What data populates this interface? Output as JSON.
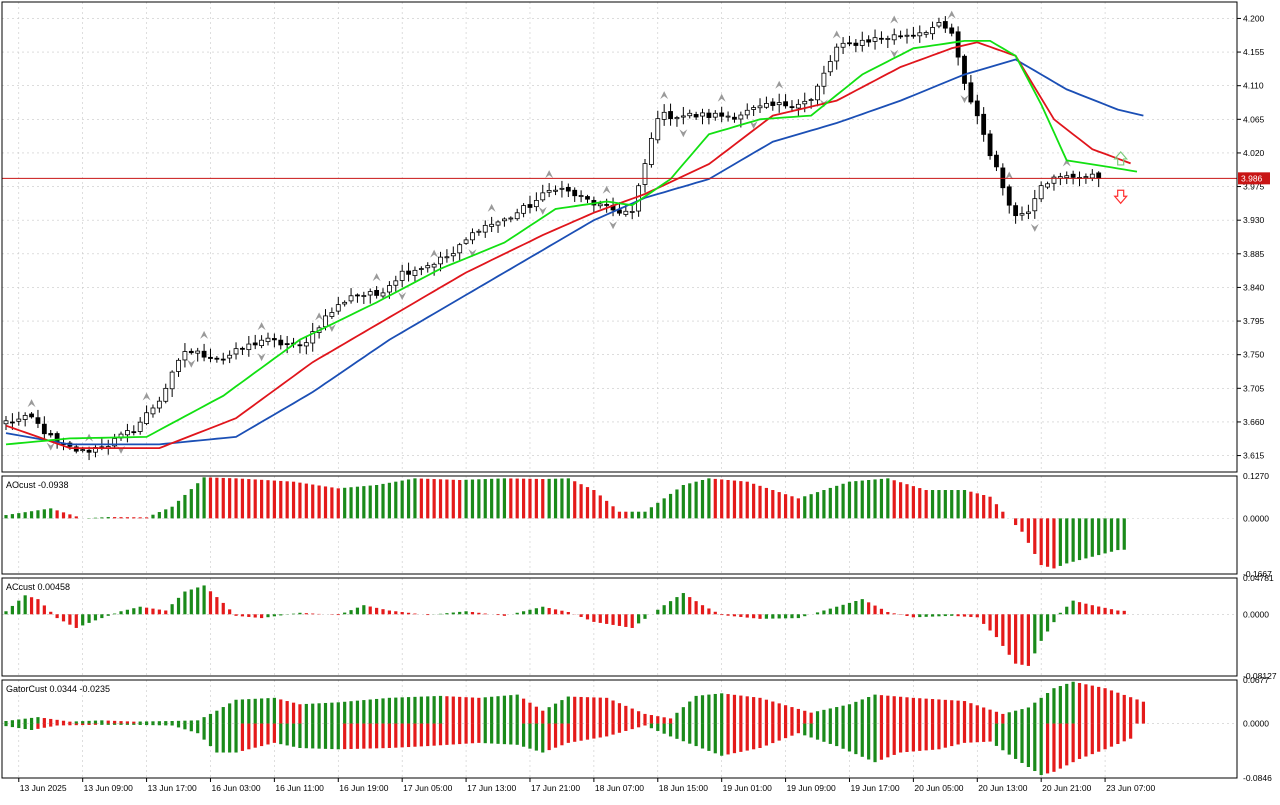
{
  "colors": {
    "background": "#ffffff",
    "grid": "#c8c8c8",
    "frame": "#000000",
    "candle_up_body": "#ffffff",
    "candle_down_body": "#000000",
    "jaw": "#1b4fb5",
    "teeth": "#e0151c",
    "lips": "#12e012",
    "bid_line": "#c81414",
    "bid_label_bg": "#c81414",
    "bid_label_text": "#ffffff",
    "histo_up": "#1a8a1a",
    "histo_down": "#e41a1a",
    "fractal": "#9a9a9a",
    "arrow_up": "#7ccc7c",
    "arrow_down": "#ff3030"
  },
  "price_panel": {
    "y_ticks": [
      "4.200",
      "4.155",
      "4.110",
      "4.065",
      "4.020",
      "3.975",
      "3.930",
      "3.885",
      "3.840",
      "3.795",
      "3.750",
      "3.705",
      "3.660",
      "3.615"
    ],
    "bid_label": "3.986",
    "bid_value": 3.986
  },
  "ao_panel": {
    "label": "AOcust -0.0938",
    "y_ticks": [
      "0.1270",
      "0.0000",
      "-0.1667"
    ]
  },
  "ac_panel": {
    "label": "ACcust 0.00458",
    "y_ticks": [
      "0.04781",
      "0.0000",
      "-0.08127"
    ]
  },
  "gator_panel": {
    "label": "GatorCust 0.0344 -0.0235",
    "y_ticks": [
      "0.0677",
      "0.0000",
      "-0.0846"
    ]
  },
  "x_ticks": [
    "13 Jun 2025",
    "13 Jun 09:00",
    "13 Jun 17:00",
    "16 Jun 03:00",
    "16 Jun 11:00",
    "16 Jun 19:00",
    "17 Jun 05:00",
    "17 Jun 13:00",
    "17 Jun 21:00",
    "18 Jun 07:00",
    "18 Jun 15:00",
    "19 Jun 01:00",
    "19 Jun 09:00",
    "19 Jun 17:00",
    "20 Jun 05:00",
    "20 Jun 13:00",
    "20 Jun 21:00",
    "23 Jun 07:00"
  ],
  "chart_data": [
    {
      "type": "candlestick",
      "symbol_panel": "price",
      "ylim": [
        3.593,
        4.222
      ],
      "y_ticks": [
        4.2,
        4.155,
        4.11,
        4.065,
        4.02,
        3.975,
        3.93,
        3.885,
        3.84,
        3.795,
        3.75,
        3.705,
        3.66,
        3.615
      ],
      "x_ticks": [
        "13 Jun 2025",
        "13 Jun 09:00",
        "13 Jun 17:00",
        "16 Jun 03:00",
        "16 Jun 11:00",
        "16 Jun 19:00",
        "17 Jun 05:00",
        "17 Jun 13:00",
        "17 Jun 21:00",
        "18 Jun 07:00",
        "18 Jun 15:00",
        "19 Jun 01:00",
        "19 Jun 09:00",
        "19 Jun 17:00",
        "20 Jun 05:00",
        "20 Jun 13:00",
        "20 Jun 21:00",
        "23 Jun 07:00"
      ],
      "close_anchors": [
        [
          0,
          3.66
        ],
        [
          4,
          3.665
        ],
        [
          8,
          3.63
        ],
        [
          12,
          3.62
        ],
        [
          16,
          3.63
        ],
        [
          20,
          3.65
        ],
        [
          24,
          3.69
        ],
        [
          28,
          3.755
        ],
        [
          34,
          3.745
        ],
        [
          40,
          3.77
        ],
        [
          46,
          3.76
        ],
        [
          50,
          3.8
        ],
        [
          54,
          3.83
        ],
        [
          58,
          3.83
        ],
        [
          62,
          3.86
        ],
        [
          66,
          3.87
        ],
        [
          70,
          3.885
        ],
        [
          74,
          3.92
        ],
        [
          78,
          3.93
        ],
        [
          82,
          3.95
        ],
        [
          86,
          3.975
        ],
        [
          90,
          3.96
        ],
        [
          94,
          3.945
        ],
        [
          98,
          3.94
        ],
        [
          102,
          4.07
        ],
        [
          106,
          4.07
        ],
        [
          110,
          4.07
        ],
        [
          114,
          4.07
        ],
        [
          118,
          4.08
        ],
        [
          122,
          4.085
        ],
        [
          126,
          4.09
        ],
        [
          130,
          4.16
        ],
        [
          134,
          4.17
        ],
        [
          138,
          4.175
        ],
        [
          142,
          4.18
        ],
        [
          146,
          4.19
        ],
        [
          148,
          4.18
        ],
        [
          150,
          4.11
        ],
        [
          152,
          4.07
        ],
        [
          154,
          4.02
        ],
        [
          156,
          3.975
        ],
        [
          158,
          3.935
        ],
        [
          160,
          3.945
        ],
        [
          162,
          3.98
        ],
        [
          164,
          3.985
        ],
        [
          168,
          3.99
        ],
        [
          171,
          3.986
        ]
      ],
      "alligator": {
        "series": [
          {
            "role": "jaw",
            "anchors": [
              [
                0,
                3.645
              ],
              [
                10,
                3.63
              ],
              [
                24,
                3.63
              ],
              [
                36,
                3.64
              ],
              [
                48,
                3.7
              ],
              [
                60,
                3.77
              ],
              [
                72,
                3.83
              ],
              [
                84,
                3.89
              ],
              [
                92,
                3.93
              ],
              [
                100,
                3.96
              ],
              [
                110,
                3.985
              ],
              [
                120,
                4.035
              ],
              [
                130,
                4.06
              ],
              [
                140,
                4.09
              ],
              [
                150,
                4.125
              ],
              [
                158,
                4.145
              ],
              [
                166,
                4.105
              ],
              [
                174,
                4.078
              ],
              [
                178,
                4.07
              ]
            ]
          },
          {
            "role": "teeth",
            "anchors": [
              [
                0,
                3.655
              ],
              [
                10,
                3.625
              ],
              [
                24,
                3.625
              ],
              [
                36,
                3.665
              ],
              [
                48,
                3.74
              ],
              [
                60,
                3.8
              ],
              [
                72,
                3.86
              ],
              [
                84,
                3.91
              ],
              [
                92,
                3.94
              ],
              [
                100,
                3.965
              ],
              [
                110,
                4.005
              ],
              [
                120,
                4.07
              ],
              [
                130,
                4.09
              ],
              [
                140,
                4.135
              ],
              [
                148,
                4.16
              ],
              [
                152,
                4.168
              ],
              [
                158,
                4.15
              ],
              [
                164,
                4.065
              ],
              [
                170,
                4.025
              ],
              [
                176,
                4.006
              ]
            ]
          },
          {
            "role": "lips",
            "anchors": [
              [
                0,
                3.63
              ],
              [
                10,
                3.638
              ],
              [
                22,
                3.64
              ],
              [
                34,
                3.695
              ],
              [
                46,
                3.77
              ],
              [
                58,
                3.82
              ],
              [
                68,
                3.865
              ],
              [
                78,
                3.9
              ],
              [
                86,
                3.945
              ],
              [
                94,
                3.955
              ],
              [
                98,
                3.95
              ],
              [
                104,
                3.985
              ],
              [
                110,
                4.045
              ],
              [
                118,
                4.065
              ],
              [
                126,
                4.07
              ],
              [
                134,
                4.125
              ],
              [
                142,
                4.16
              ],
              [
                150,
                4.17
              ],
              [
                154,
                4.17
              ],
              [
                158,
                4.15
              ],
              [
                162,
                4.085
              ],
              [
                166,
                4.01
              ],
              [
                172,
                4.002
              ],
              [
                177,
                3.995
              ]
            ]
          }
        ]
      },
      "bid": 3.986
    },
    {
      "type": "histogram",
      "name": "AOcust",
      "value_label": "-0.0938",
      "ylim": [
        -0.1667,
        0.127
      ],
      "last_value": -0.0938,
      "value_anchors": [
        [
          0,
          0.01
        ],
        [
          7,
          0.03
        ],
        [
          12,
          0.0
        ],
        [
          16,
          0.004
        ],
        [
          22,
          0.003
        ],
        [
          26,
          0.035
        ],
        [
          31,
          0.123
        ],
        [
          36,
          0.12
        ],
        [
          45,
          0.11
        ],
        [
          52,
          0.09
        ],
        [
          58,
          0.1
        ],
        [
          64,
          0.12
        ],
        [
          71,
          0.115
        ],
        [
          78,
          0.12
        ],
        [
          84,
          0.118
        ],
        [
          88,
          0.12
        ],
        [
          92,
          0.085
        ],
        [
          96,
          0.02
        ],
        [
          100,
          0.02
        ],
        [
          106,
          0.1
        ],
        [
          110,
          0.12
        ],
        [
          116,
          0.11
        ],
        [
          124,
          0.06
        ],
        [
          132,
          0.11
        ],
        [
          138,
          0.12
        ],
        [
          144,
          0.085
        ],
        [
          150,
          0.085
        ],
        [
          154,
          0.065
        ],
        [
          156,
          0.02
        ],
        [
          159,
          -0.04
        ],
        [
          162,
          -0.14
        ],
        [
          164,
          -0.15
        ],
        [
          166,
          -0.135
        ],
        [
          170,
          -0.115
        ],
        [
          174,
          -0.095
        ],
        [
          175,
          -0.094
        ]
      ]
    },
    {
      "type": "histogram",
      "name": "ACcust",
      "value_label": "0.00458",
      "ylim": [
        -0.08127,
        0.04781
      ],
      "last_value": 0.00458,
      "value_anchors": [
        [
          0,
          0.004
        ],
        [
          3,
          0.025
        ],
        [
          5,
          0.02
        ],
        [
          8,
          -0.005
        ],
        [
          11,
          -0.018
        ],
        [
          14,
          -0.008
        ],
        [
          18,
          0.004
        ],
        [
          21,
          0.01
        ],
        [
          25,
          0.005
        ],
        [
          28,
          0.03
        ],
        [
          31,
          0.038
        ],
        [
          34,
          0.015
        ],
        [
          36,
          -0.002
        ],
        [
          40,
          -0.005
        ],
        [
          46,
          0.002
        ],
        [
          52,
          -0.001
        ],
        [
          56,
          0.012
        ],
        [
          60,
          0.005
        ],
        [
          66,
          -0.001
        ],
        [
          72,
          0.004
        ],
        [
          78,
          -0.002
        ],
        [
          84,
          0.01
        ],
        [
          88,
          0.003
        ],
        [
          92,
          -0.01
        ],
        [
          98,
          -0.018
        ],
        [
          103,
          0.012
        ],
        [
          106,
          0.028
        ],
        [
          109,
          0.012
        ],
        [
          112,
          -0.001
        ],
        [
          118,
          -0.006
        ],
        [
          124,
          -0.005
        ],
        [
          130,
          0.01
        ],
        [
          134,
          0.02
        ],
        [
          138,
          0.003
        ],
        [
          142,
          -0.004
        ],
        [
          148,
          -0.002
        ],
        [
          152,
          -0.004
        ],
        [
          155,
          -0.03
        ],
        [
          158,
          -0.065
        ],
        [
          160,
          -0.068
        ],
        [
          162,
          -0.035
        ],
        [
          165,
          0.002
        ],
        [
          167,
          0.018
        ],
        [
          170,
          0.012
        ],
        [
          174,
          0.005
        ],
        [
          175,
          0.00458
        ]
      ]
    },
    {
      "type": "gator",
      "name": "GatorCust",
      "value_label": "0.0344 -0.0235",
      "ylim": [
        -0.0846,
        0.0677
      ],
      "upper_anchors": [
        [
          0,
          0.004
        ],
        [
          5,
          0.01
        ],
        [
          10,
          0.003
        ],
        [
          15,
          0.005
        ],
        [
          20,
          0.003
        ],
        [
          26,
          0.004
        ],
        [
          30,
          0.005
        ],
        [
          33,
          0.02
        ],
        [
          36,
          0.037
        ],
        [
          42,
          0.04
        ],
        [
          46,
          0.03
        ],
        [
          52,
          0.033
        ],
        [
          60,
          0.04
        ],
        [
          68,
          0.043
        ],
        [
          74,
          0.04
        ],
        [
          80,
          0.045
        ],
        [
          84,
          0.02
        ],
        [
          88,
          0.042
        ],
        [
          94,
          0.04
        ],
        [
          100,
          0.015
        ],
        [
          104,
          0.008
        ],
        [
          108,
          0.043
        ],
        [
          112,
          0.047
        ],
        [
          118,
          0.04
        ],
        [
          126,
          0.017
        ],
        [
          132,
          0.03
        ],
        [
          136,
          0.045
        ],
        [
          142,
          0.04
        ],
        [
          150,
          0.035
        ],
        [
          156,
          0.015
        ],
        [
          160,
          0.025
        ],
        [
          164,
          0.055
        ],
        [
          167,
          0.065
        ],
        [
          172,
          0.055
        ],
        [
          178,
          0.034
        ]
      ],
      "lower_anchors": [
        [
          0,
          -0.004
        ],
        [
          4,
          -0.01
        ],
        [
          8,
          -0.003
        ],
        [
          14,
          -0.002
        ],
        [
          20,
          -0.002
        ],
        [
          26,
          -0.003
        ],
        [
          30,
          -0.015
        ],
        [
          33,
          -0.045
        ],
        [
          36,
          -0.045
        ],
        [
          42,
          -0.03
        ],
        [
          46,
          -0.038
        ],
        [
          52,
          -0.04
        ],
        [
          60,
          -0.038
        ],
        [
          66,
          -0.035
        ],
        [
          74,
          -0.03
        ],
        [
          80,
          -0.033
        ],
        [
          84,
          -0.045
        ],
        [
          88,
          -0.03
        ],
        [
          94,
          -0.02
        ],
        [
          100,
          -0.003
        ],
        [
          104,
          -0.02
        ],
        [
          108,
          -0.035
        ],
        [
          112,
          -0.05
        ],
        [
          118,
          -0.038
        ],
        [
          124,
          -0.015
        ],
        [
          130,
          -0.035
        ],
        [
          136,
          -0.06
        ],
        [
          140,
          -0.045
        ],
        [
          146,
          -0.04
        ],
        [
          150,
          -0.03
        ],
        [
          154,
          -0.028
        ],
        [
          158,
          -0.055
        ],
        [
          162,
          -0.08
        ],
        [
          164,
          -0.075
        ],
        [
          168,
          -0.055
        ],
        [
          172,
          -0.04
        ],
        [
          176,
          -0.0235
        ]
      ]
    }
  ]
}
